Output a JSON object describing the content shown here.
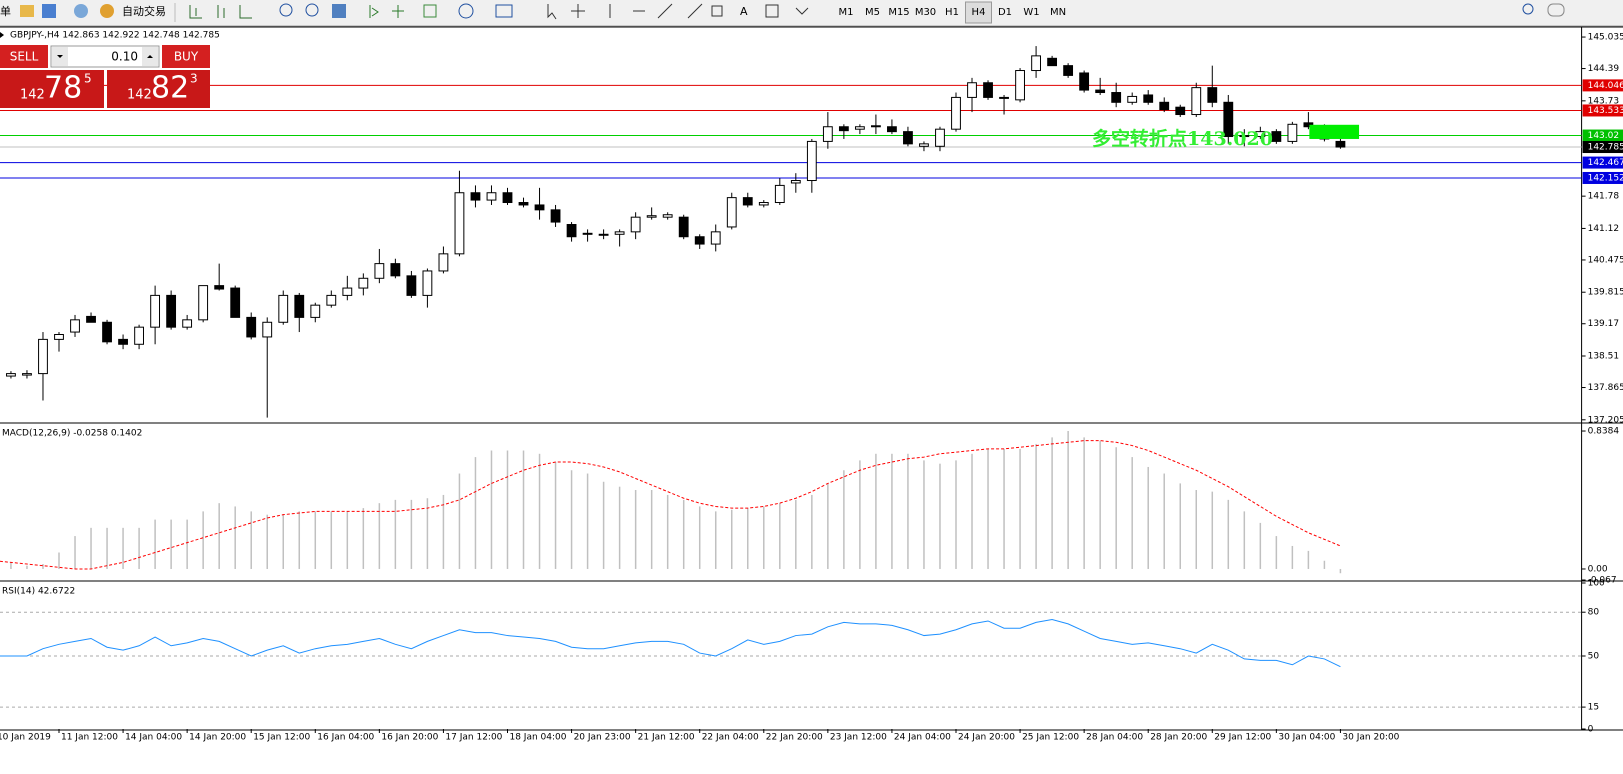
{
  "toolbar": {
    "menu_fragment": "单",
    "auto_trading": "自动交易",
    "timeframes": [
      "M1",
      "M5",
      "M15",
      "M30",
      "H1",
      "H4",
      "D1",
      "W1",
      "MN"
    ]
  },
  "trade_panel": {
    "sell": "SELL",
    "buy": "BUY",
    "lot": "0.10",
    "bid": {
      "prefix": "142",
      "digits": "78",
      "pip": "5"
    },
    "ask": {
      "prefix": "142",
      "digits": "82",
      "pip": "3"
    }
  },
  "chart_data": [
    {
      "type": "candlestick",
      "title": "GBPJPY-,H4  142.863 142.922 142.748 142.785",
      "categories": [
        "10 Jan 2019",
        null,
        null,
        null,
        "11 Jan 12:00",
        null,
        null,
        null,
        "14 Jan 04:00",
        null,
        null,
        null,
        "14 Jan 20:00",
        null,
        null,
        null,
        "15 Jan 12:00",
        null,
        null,
        null,
        "16 Jan 04:00",
        null,
        null,
        null,
        "16 Jan 20:00",
        null,
        null,
        null,
        "17 Jan 12:00",
        null,
        null,
        null,
        "18 Jan 04:00",
        null,
        null,
        null,
        "20 Jan 23:00",
        null,
        null,
        null,
        "21 Jan 12:00",
        null,
        null,
        null,
        "22 Jan 04:00",
        null,
        null,
        null,
        "22 Jan 20:00",
        null,
        null,
        null,
        "23 Jan 12:00",
        null,
        null,
        null,
        "24 Jan 04:00",
        null,
        null,
        null,
        "24 Jan 20:00",
        null,
        null,
        null,
        "25 Jan 12:00",
        null,
        null,
        null,
        "28 Jan 04:00",
        null,
        null,
        null,
        "28 Jan 20:00",
        null,
        null,
        null,
        "29 Jan 12:00",
        null,
        null,
        null,
        "30 Jan 04:00",
        null,
        null,
        null,
        "30 Jan 20:00"
      ],
      "candles": [
        [
          138.1,
          138.2,
          138.05,
          138.15
        ],
        [
          138.1,
          138.2,
          138.05,
          138.15
        ],
        [
          138.12,
          138.22,
          138.05,
          138.15
        ],
        [
          138.15,
          139.0,
          137.6,
          138.85
        ],
        [
          138.85,
          139.0,
          138.6,
          138.95
        ],
        [
          139.0,
          139.35,
          138.9,
          139.25
        ],
        [
          139.32,
          139.4,
          139.2,
          139.2
        ],
        [
          139.2,
          139.25,
          138.75,
          138.8
        ],
        [
          138.85,
          138.95,
          138.65,
          138.75
        ],
        [
          138.75,
          139.15,
          138.65,
          139.1
        ],
        [
          139.1,
          139.95,
          138.75,
          139.75
        ],
        [
          139.75,
          139.85,
          139.05,
          139.1
        ],
        [
          139.1,
          139.35,
          139.05,
          139.25
        ],
        [
          139.25,
          139.95,
          139.2,
          139.95
        ],
        [
          139.95,
          140.4,
          139.85,
          139.88
        ],
        [
          139.9,
          139.95,
          139.3,
          139.3
        ],
        [
          139.3,
          139.4,
          138.85,
          138.9
        ],
        [
          138.9,
          139.3,
          137.25,
          139.2
        ],
        [
          139.2,
          139.85,
          139.15,
          139.75
        ],
        [
          139.75,
          139.8,
          139.0,
          139.3
        ],
        [
          139.3,
          139.6,
          139.2,
          139.55
        ],
        [
          139.55,
          139.85,
          139.5,
          139.75
        ],
        [
          139.75,
          140.15,
          139.65,
          139.9
        ],
        [
          139.9,
          140.2,
          139.75,
          140.1
        ],
        [
          140.1,
          140.7,
          140.0,
          140.4
        ],
        [
          140.4,
          140.5,
          140.1,
          140.15
        ],
        [
          140.15,
          140.25,
          139.7,
          139.75
        ],
        [
          139.75,
          140.3,
          139.5,
          140.25
        ],
        [
          140.25,
          140.75,
          140.2,
          140.6
        ],
        [
          140.6,
          142.3,
          140.55,
          141.85
        ],
        [
          141.85,
          142.0,
          141.55,
          141.7
        ],
        [
          141.7,
          142.0,
          141.6,
          141.85
        ],
        [
          141.85,
          141.95,
          141.6,
          141.65
        ],
        [
          141.65,
          141.75,
          141.55,
          141.6
        ],
        [
          141.6,
          141.95,
          141.3,
          141.5
        ],
        [
          141.5,
          141.6,
          141.15,
          141.25
        ],
        [
          141.2,
          141.25,
          140.85,
          140.95
        ],
        [
          141.0,
          141.1,
          140.85,
          141.02
        ],
        [
          141.0,
          141.1,
          140.9,
          141.0
        ],
        [
          141.0,
          141.1,
          140.75,
          141.05
        ],
        [
          141.05,
          141.45,
          140.9,
          141.35
        ],
        [
          141.35,
          141.55,
          141.3,
          141.38
        ],
        [
          141.35,
          141.45,
          141.3,
          141.4
        ],
        [
          141.35,
          141.4,
          140.9,
          140.95
        ],
        [
          140.95,
          141.0,
          140.7,
          140.8
        ],
        [
          140.8,
          141.2,
          140.65,
          141.05
        ],
        [
          141.15,
          141.85,
          141.1,
          141.75
        ],
        [
          141.75,
          141.85,
          141.55,
          141.6
        ],
        [
          141.6,
          141.7,
          141.55,
          141.65
        ],
        [
          141.65,
          142.15,
          141.6,
          142.0
        ],
        [
          142.05,
          142.25,
          141.85,
          142.1
        ],
        [
          142.1,
          142.95,
          141.85,
          142.9
        ],
        [
          142.9,
          143.5,
          142.75,
          143.2
        ],
        [
          143.2,
          143.25,
          142.95,
          143.12
        ],
        [
          143.15,
          143.25,
          143.05,
          143.2
        ],
        [
          143.2,
          143.45,
          143.05,
          143.22
        ],
        [
          143.2,
          143.35,
          143.05,
          143.1
        ],
        [
          143.1,
          143.2,
          142.8,
          142.85
        ],
        [
          142.8,
          142.9,
          142.7,
          142.85
        ],
        [
          142.8,
          143.2,
          142.7,
          143.15
        ],
        [
          143.15,
          143.9,
          143.1,
          143.8
        ],
        [
          143.8,
          144.2,
          143.5,
          144.1
        ],
        [
          144.1,
          144.15,
          143.75,
          143.8
        ],
        [
          143.8,
          143.85,
          143.45,
          143.78
        ],
        [
          143.75,
          144.4,
          143.7,
          144.35
        ],
        [
          144.35,
          144.85,
          144.2,
          144.65
        ],
        [
          144.6,
          144.65,
          144.45,
          144.45
        ],
        [
          144.45,
          144.5,
          144.2,
          144.25
        ],
        [
          144.3,
          144.35,
          143.9,
          143.95
        ],
        [
          143.95,
          144.2,
          143.85,
          143.9
        ],
        [
          143.9,
          144.1,
          143.6,
          143.7
        ],
        [
          143.7,
          143.9,
          143.65,
          143.82
        ],
        [
          143.85,
          143.95,
          143.65,
          143.7
        ],
        [
          143.7,
          143.8,
          143.5,
          143.55
        ],
        [
          143.6,
          143.65,
          143.4,
          143.45
        ],
        [
          143.45,
          144.1,
          143.4,
          144.0
        ],
        [
          144.0,
          144.45,
          143.6,
          143.7
        ],
        [
          143.7,
          143.85,
          142.85,
          143.0
        ],
        [
          143.0,
          143.15,
          142.8,
          143.02
        ],
        [
          143.0,
          143.2,
          142.95,
          143.1
        ],
        [
          143.1,
          143.15,
          142.85,
          142.9
        ],
        [
          142.9,
          143.3,
          142.85,
          143.25
        ],
        [
          143.28,
          143.5,
          143.15,
          143.2
        ],
        [
          143.2,
          143.25,
          142.9,
          142.95
        ],
        [
          142.9,
          142.95,
          142.75,
          142.785
        ]
      ],
      "ylim": [
        137.16,
        145.22
      ],
      "yticks": [
        145.035,
        144.39,
        143.73,
        141.78,
        141.12,
        140.475,
        139.815,
        139.17,
        138.51,
        137.865,
        137.205
      ],
      "levels": [
        {
          "value": 144.046,
          "color": "#e00000",
          "label_background": "#e00000"
        },
        {
          "value": 143.533,
          "color": "#e00000",
          "label_background": "#e00000"
        },
        {
          "value": 143.02,
          "color": "#00d000",
          "label_background": "#00c000"
        },
        {
          "value": 142.785,
          "color": "#c0c0c0",
          "label_background": "#000000"
        },
        {
          "value": 142.467,
          "color": "#0000e0",
          "label_background": "#0000e0"
        },
        {
          "value": 142.152,
          "color": "#0000e0",
          "label_background": "#0000e0"
        }
      ],
      "annotation": "多空转折点143.020",
      "box": {
        "top": 143.24,
        "bottom": 142.95,
        "color": "#00ee00"
      }
    },
    {
      "type": "macd",
      "title": "MACD(12,26,9) -0.0258 0.1402",
      "series": [
        {
          "name": "histogram",
          "color": "#c0c0c0",
          "values": [
            0.05,
            0.04,
            0.02,
            0.03,
            0.1,
            0.2,
            0.25,
            0.25,
            0.25,
            0.25,
            0.3,
            0.3,
            0.3,
            0.35,
            0.4,
            0.38,
            0.35,
            0.33,
            0.33,
            0.35,
            0.35,
            0.35,
            0.35,
            0.37,
            0.4,
            0.42,
            0.42,
            0.43,
            0.45,
            0.58,
            0.68,
            0.72,
            0.72,
            0.72,
            0.7,
            0.65,
            0.6,
            0.58,
            0.53,
            0.5,
            0.48,
            0.48,
            0.45,
            0.42,
            0.38,
            0.35,
            0.36,
            0.37,
            0.38,
            0.4,
            0.42,
            0.45,
            0.52,
            0.6,
            0.66,
            0.7,
            0.7,
            0.7,
            0.66,
            0.64,
            0.66,
            0.7,
            0.73,
            0.73,
            0.73,
            0.76,
            0.8,
            0.8384,
            0.8,
            0.78,
            0.74,
            0.68,
            0.62,
            0.58,
            0.52,
            0.48,
            0.47,
            0.42,
            0.35,
            0.28,
            0.2,
            0.14,
            0.11,
            0.05,
            -0.0258
          ]
        },
        {
          "name": "signal",
          "color": "#ff0000",
          "values": [
            0.05,
            0.04,
            0.03,
            0.02,
            0.01,
            0.0,
            0.0,
            0.02,
            0.04,
            0.07,
            0.1,
            0.13,
            0.16,
            0.19,
            0.22,
            0.25,
            0.28,
            0.31,
            0.33,
            0.34,
            0.35,
            0.35,
            0.35,
            0.35,
            0.35,
            0.35,
            0.36,
            0.37,
            0.39,
            0.42,
            0.47,
            0.52,
            0.56,
            0.6,
            0.63,
            0.65,
            0.65,
            0.64,
            0.62,
            0.59,
            0.55,
            0.51,
            0.47,
            0.43,
            0.4,
            0.38,
            0.37,
            0.37,
            0.38,
            0.4,
            0.43,
            0.47,
            0.52,
            0.56,
            0.6,
            0.63,
            0.65,
            0.67,
            0.68,
            0.7,
            0.71,
            0.72,
            0.73,
            0.73,
            0.74,
            0.75,
            0.76,
            0.77,
            0.78,
            0.78,
            0.77,
            0.75,
            0.72,
            0.68,
            0.64,
            0.6,
            0.55,
            0.5,
            0.44,
            0.38,
            0.32,
            0.27,
            0.22,
            0.18,
            0.1402
          ]
        }
      ],
      "ylim": [
        -0.067,
        0.875
      ],
      "yticks": [
        0.8384,
        {
          "value": 0,
          "label": "0.00"
        },
        -0.067
      ]
    },
    {
      "type": "line",
      "title": "RSI(14) 42.6722",
      "series": [
        {
          "name": "RSI",
          "color": "#1e90ff",
          "values": [
            50,
            50,
            50,
            55,
            58,
            60,
            62,
            56,
            54,
            57,
            63,
            57,
            59,
            62,
            60,
            55,
            50,
            54,
            57,
            52,
            55,
            57,
            58,
            60,
            62,
            58,
            55,
            60,
            64,
            68,
            66,
            66,
            64,
            63,
            62,
            60,
            56,
            55,
            55,
            57,
            59,
            60,
            60,
            58,
            52,
            50,
            55,
            61,
            58,
            60,
            64,
            65,
            70,
            73,
            72,
            72,
            71,
            68,
            64,
            65,
            68,
            72,
            74,
            69,
            69,
            73,
            75,
            72,
            67,
            62,
            60,
            58,
            59,
            57,
            55,
            52,
            58,
            54,
            48,
            47,
            47,
            44,
            50,
            48,
            42.6722
          ]
        }
      ],
      "ylim": [
        0,
        100
      ],
      "yticks": [
        100,
        80,
        50,
        15,
        0
      ]
    }
  ]
}
